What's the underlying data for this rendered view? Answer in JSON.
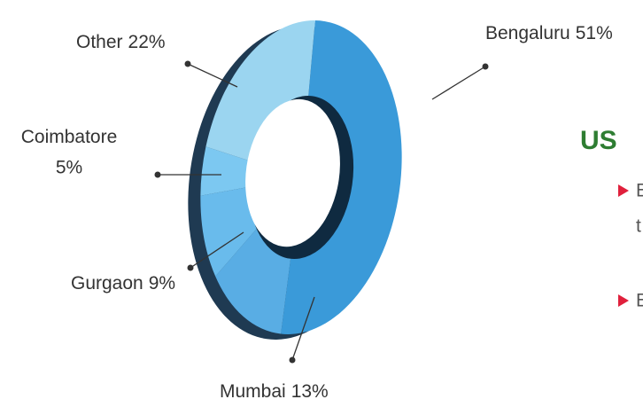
{
  "chart_data": {
    "type": "donut",
    "categories": [
      "Bengaluru",
      "Mumbai",
      "Gurgaon",
      "Coimbatore",
      "Other"
    ],
    "values": [
      51,
      13,
      9,
      5,
      22
    ],
    "value_labels": [
      "51%",
      "13%",
      "9%",
      "5%",
      "22%"
    ],
    "colors": [
      "#3a9ad9",
      "#59ade4",
      "#69bbec",
      "#7cc8f1",
      "#9bd5f0"
    ]
  },
  "side_panel": {
    "heading": "US",
    "bullets": [
      [
        "E",
        "t"
      ],
      [
        "E"
      ]
    ]
  }
}
